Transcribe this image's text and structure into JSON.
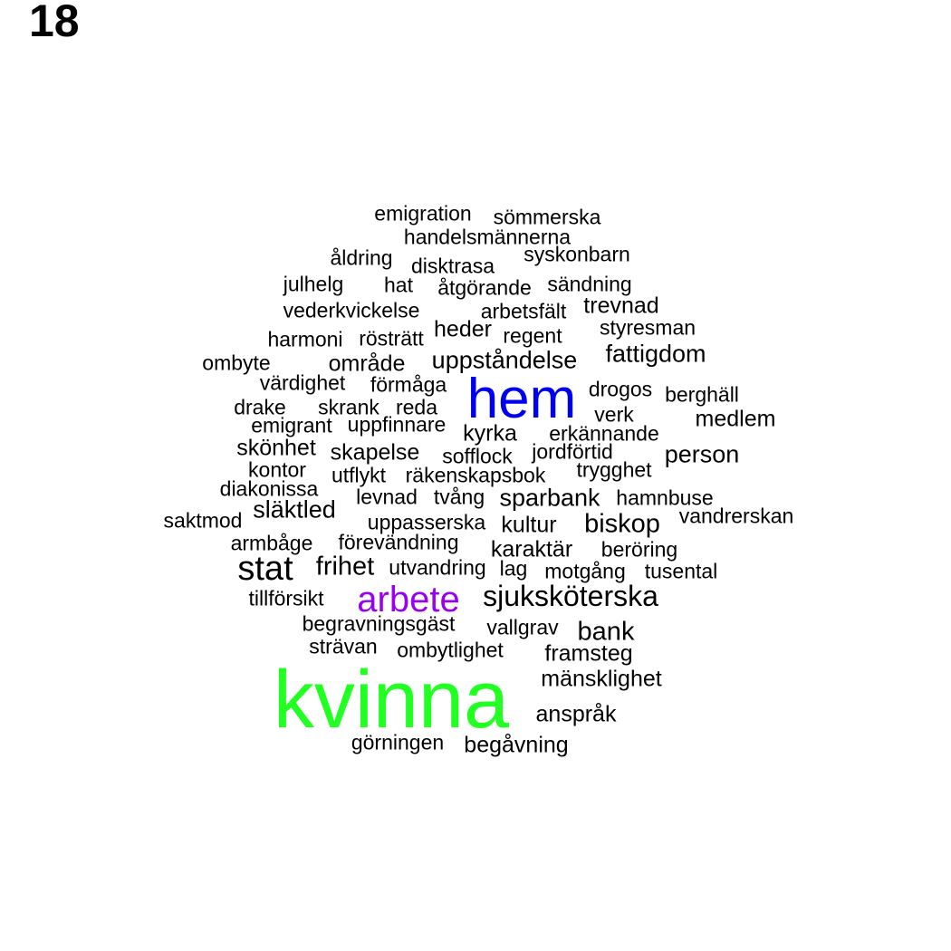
{
  "page_number": "18",
  "colors": {
    "default": "#000000",
    "kvinna": "#22ff22",
    "hem": "#0000ee",
    "arbete": "#9900ee"
  },
  "words": [
    {
      "text": "emigration"
    },
    {
      "text": "sömmerska"
    },
    {
      "text": "handelsmännerna"
    },
    {
      "text": "åldring"
    },
    {
      "text": "syskonbarn"
    },
    {
      "text": "disktrasa"
    },
    {
      "text": "julhelg"
    },
    {
      "text": "hat"
    },
    {
      "text": "åtgörande"
    },
    {
      "text": "sändning"
    },
    {
      "text": "vederkvickelse"
    },
    {
      "text": "arbetsfält"
    },
    {
      "text": "trevnad"
    },
    {
      "text": "heder"
    },
    {
      "text": "styresman"
    },
    {
      "text": "harmoni"
    },
    {
      "text": "rösträtt"
    },
    {
      "text": "regent"
    },
    {
      "text": "fattigdom"
    },
    {
      "text": "ombyte"
    },
    {
      "text": "område"
    },
    {
      "text": "uppståndelse"
    },
    {
      "text": "värdighet"
    },
    {
      "text": "förmåga"
    },
    {
      "text": "hem",
      "color_key": "hem"
    },
    {
      "text": "drogos"
    },
    {
      "text": "berghäll"
    },
    {
      "text": "drake"
    },
    {
      "text": "skrank"
    },
    {
      "text": "reda"
    },
    {
      "text": "verk"
    },
    {
      "text": "medlem"
    },
    {
      "text": "emigrant"
    },
    {
      "text": "uppfinnare"
    },
    {
      "text": "kyrka"
    },
    {
      "text": "erkännande"
    },
    {
      "text": "skönhet"
    },
    {
      "text": "skapelse"
    },
    {
      "text": "sofflock"
    },
    {
      "text": "jordförtid"
    },
    {
      "text": "person"
    },
    {
      "text": "kontor"
    },
    {
      "text": "utflykt"
    },
    {
      "text": "räkenskapsbok"
    },
    {
      "text": "trygghet"
    },
    {
      "text": "diakonissa"
    },
    {
      "text": "levnad"
    },
    {
      "text": "tvång"
    },
    {
      "text": "sparbank"
    },
    {
      "text": "hamnbuse"
    },
    {
      "text": "saktmod"
    },
    {
      "text": "släktled"
    },
    {
      "text": "uppasserska"
    },
    {
      "text": "kultur"
    },
    {
      "text": "biskop"
    },
    {
      "text": "vandrerskan"
    },
    {
      "text": "armbåge"
    },
    {
      "text": "förevändning"
    },
    {
      "text": "karaktär"
    },
    {
      "text": "beröring"
    },
    {
      "text": "stat"
    },
    {
      "text": "frihet"
    },
    {
      "text": "utvandring"
    },
    {
      "text": "lag"
    },
    {
      "text": "motgång"
    },
    {
      "text": "tusental"
    },
    {
      "text": "tillförsikt"
    },
    {
      "text": "arbete",
      "color_key": "arbete"
    },
    {
      "text": "sjuksköterska"
    },
    {
      "text": "begravningsgäst"
    },
    {
      "text": "vallgrav"
    },
    {
      "text": "bank"
    },
    {
      "text": "strävan"
    },
    {
      "text": "ombytlighet"
    },
    {
      "text": "framsteg"
    },
    {
      "text": "mänsklighet"
    },
    {
      "text": "kvinna",
      "color_key": "kvinna"
    },
    {
      "text": "anspråk"
    },
    {
      "text": "görningen"
    },
    {
      "text": "begåvning"
    }
  ]
}
